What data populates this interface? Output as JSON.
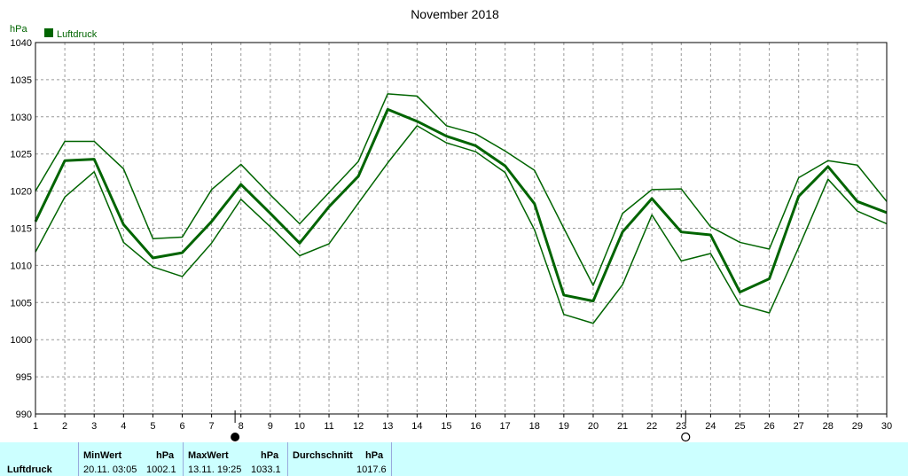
{
  "chart_data": {
    "type": "line",
    "title": "November 2018",
    "ylabel": "hPa",
    "ylim": [
      990,
      1040
    ],
    "yticks": [
      990,
      995,
      1000,
      1005,
      1010,
      1015,
      1020,
      1025,
      1030,
      1035,
      1040
    ],
    "xlim": [
      1,
      30
    ],
    "categories": [
      "1",
      "2",
      "3",
      "4",
      "5",
      "6",
      "7",
      "8",
      "9",
      "10",
      "11",
      "12",
      "13",
      "14",
      "15",
      "16",
      "17",
      "18",
      "19",
      "20",
      "21",
      "22",
      "23",
      "24",
      "25",
      "26",
      "27",
      "28",
      "29",
      "30"
    ],
    "grid": true,
    "legend": {
      "position": "top-left",
      "label": "Luftdruck",
      "color": "#006400"
    },
    "series": [
      {
        "name": "Luftdruck",
        "role": "max",
        "color": "#006400",
        "values": [
          1020.0,
          1026.7,
          1026.7,
          1023.0,
          1013.6,
          1013.8,
          1020.2,
          1023.6,
          1019.5,
          1015.6,
          1019.8,
          1024.0,
          1033.1,
          1032.8,
          1028.8,
          1027.7,
          1025.4,
          1022.8,
          1015.0,
          1007.3,
          1017.0,
          1020.2,
          1020.3,
          1015.2,
          1013.1,
          1012.2,
          1021.8,
          1024.1,
          1023.5,
          1018.6
        ]
      },
      {
        "name": "Luftdruck",
        "role": "mean",
        "color": "#006400",
        "values": [
          1015.9,
          1024.1,
          1024.3,
          1015.5,
          1011.0,
          1011.7,
          1015.9,
          1020.9,
          1017.0,
          1013.0,
          1017.9,
          1022.0,
          1031.0,
          1029.4,
          1027.4,
          1026.1,
          1023.4,
          1018.3,
          1006.0,
          1005.2,
          1014.5,
          1019.0,
          1014.5,
          1014.1,
          1006.4,
          1008.2,
          1019.3,
          1023.3,
          1018.6,
          1017.1
        ]
      },
      {
        "name": "Luftdruck",
        "role": "min",
        "color": "#006400",
        "values": [
          1011.8,
          1019.2,
          1022.6,
          1013.1,
          1009.8,
          1008.5,
          1013.0,
          1018.9,
          1015.2,
          1011.3,
          1012.9,
          1018.4,
          1023.8,
          1028.8,
          1026.5,
          1025.3,
          1022.5,
          1014.8,
          1003.4,
          1002.2,
          1007.4,
          1016.8,
          1010.6,
          1011.6,
          1004.7,
          1003.6,
          1012.4,
          1021.6,
          1017.3,
          1015.6
        ]
      }
    ],
    "moon_phases": [
      {
        "day": 7.8,
        "phase": "new-moon"
      },
      {
        "day": 23.15,
        "phase": "full-moon"
      }
    ]
  },
  "stats": {
    "row_label": "Luftdruck",
    "min": {
      "header": "MinWert",
      "unit": "hPa",
      "time": "20.11.  03:05",
      "value": "1002.1"
    },
    "max": {
      "header": "MaxWert",
      "unit": "hPa",
      "time": "13.11.  19:25",
      "value": "1033.1"
    },
    "avg": {
      "header": "Durchschnitt",
      "unit": "hPa",
      "value": "1017.6"
    }
  }
}
